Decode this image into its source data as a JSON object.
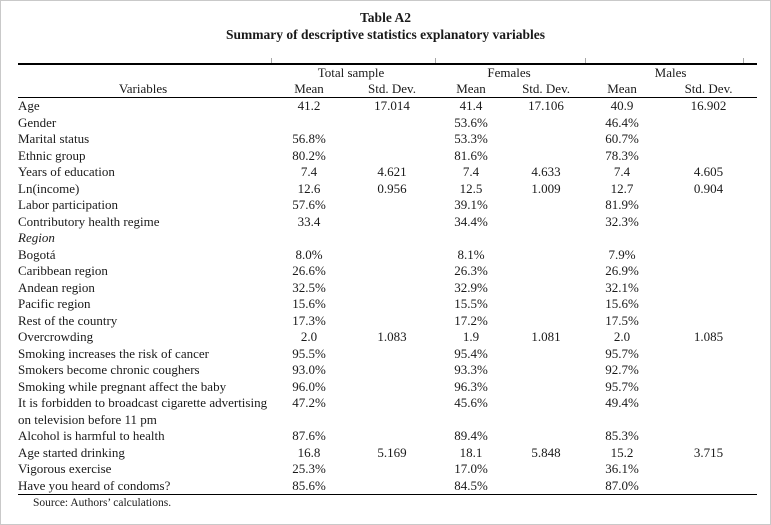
{
  "title": "Table A2",
  "subtitle": "Summary of descriptive statistics explanatory variables",
  "table": {
    "variables_header": "Variables",
    "groups": [
      {
        "label": "Total sample"
      },
      {
        "label": "Females"
      },
      {
        "label": "Males"
      }
    ],
    "sub_headers": [
      "Mean",
      "Std. Dev."
    ],
    "rows": [
      {
        "label": "Age",
        "style": "normal",
        "cells": [
          "41.2",
          "17.014",
          "41.4",
          "17.106",
          "40.9",
          "16.902"
        ]
      },
      {
        "label": "Gender",
        "style": "normal",
        "cells": [
          "",
          "",
          "53.6%",
          "",
          "46.4%",
          ""
        ]
      },
      {
        "label": "Marital status",
        "style": "normal",
        "cells": [
          "56.8%",
          "",
          "53.3%",
          "",
          "60.7%",
          ""
        ]
      },
      {
        "label": "Ethnic group",
        "style": "normal",
        "cells": [
          "80.2%",
          "",
          "81.6%",
          "",
          "78.3%",
          ""
        ]
      },
      {
        "label": "Years of education",
        "style": "normal",
        "cells": [
          "7.4",
          "4.621",
          "7.4",
          "4.633",
          "7.4",
          "4.605"
        ]
      },
      {
        "label": "Ln(income)",
        "style": "normal",
        "cells": [
          "12.6",
          "0.956",
          "12.5",
          "1.009",
          "12.7",
          "0.904"
        ]
      },
      {
        "label": "Labor participation",
        "style": "normal",
        "cells": [
          "57.6%",
          "",
          "39.1%",
          "",
          "81.9%",
          ""
        ]
      },
      {
        "label": "Contributory health regime",
        "style": "normal",
        "cells": [
          "33.4",
          "",
          "34.4%",
          "",
          "32.3%",
          ""
        ]
      },
      {
        "label": "Region",
        "style": "italic",
        "cells": [
          "",
          "",
          "",
          "",
          "",
          ""
        ]
      },
      {
        "label": "Bogotá",
        "style": "normal",
        "cells": [
          "8.0%",
          "",
          "8.1%",
          "",
          "7.9%",
          ""
        ]
      },
      {
        "label": "Caribbean region",
        "style": "normal",
        "cells": [
          "26.6%",
          "",
          "26.3%",
          "",
          "26.9%",
          ""
        ]
      },
      {
        "label": "Andean region",
        "style": "normal",
        "cells": [
          "32.5%",
          "",
          "32.9%",
          "",
          "32.1%",
          ""
        ]
      },
      {
        "label": "Pacific region",
        "style": "normal",
        "cells": [
          "15.6%",
          "",
          "15.5%",
          "",
          "15.6%",
          ""
        ]
      },
      {
        "label": "Rest of the country",
        "style": "normal",
        "cells": [
          "17.3%",
          "",
          "17.2%",
          "",
          "17.5%",
          ""
        ]
      },
      {
        "label": "Overcrowding",
        "style": "normal",
        "cells": [
          "2.0",
          "1.083",
          "1.9",
          "1.081",
          "2.0",
          "1.085"
        ]
      },
      {
        "label": "Smoking increases the risk of cancer",
        "style": "normal",
        "cells": [
          "95.5%",
          "",
          "95.4%",
          "",
          "95.7%",
          ""
        ]
      },
      {
        "label": "Smokers become chronic coughers",
        "style": "normal",
        "cells": [
          "93.0%",
          "",
          "93.3%",
          "",
          "92.7%",
          ""
        ]
      },
      {
        "label": "Smoking while pregnant affect the baby",
        "style": "normal",
        "cells": [
          "96.0%",
          "",
          "96.3%",
          "",
          "95.7%",
          ""
        ]
      },
      {
        "label": "It is forbidden to broadcast cigarette advertising on television before 11 pm",
        "style": "normal",
        "cells": [
          "47.2%",
          "",
          "45.6%",
          "",
          "49.4%",
          ""
        ]
      },
      {
        "label": "Alcohol is harmful to health",
        "style": "normal",
        "cells": [
          "87.6%",
          "",
          "89.4%",
          "",
          "85.3%",
          ""
        ]
      },
      {
        "label": "Age started drinking",
        "style": "normal",
        "cells": [
          "16.8",
          "5.169",
          "18.1",
          "5.848",
          "15.2",
          "3.715"
        ]
      },
      {
        "label": "Vigorous exercise",
        "style": "normal",
        "cells": [
          "25.3%",
          "",
          "17.0%",
          "",
          "36.1%",
          ""
        ]
      },
      {
        "label": "Have you heard of condoms?",
        "style": "normal",
        "cells": [
          "85.6%",
          "",
          "84.5%",
          "",
          "87.0%",
          ""
        ]
      }
    ],
    "source": "Source: Authors’ calculations."
  }
}
